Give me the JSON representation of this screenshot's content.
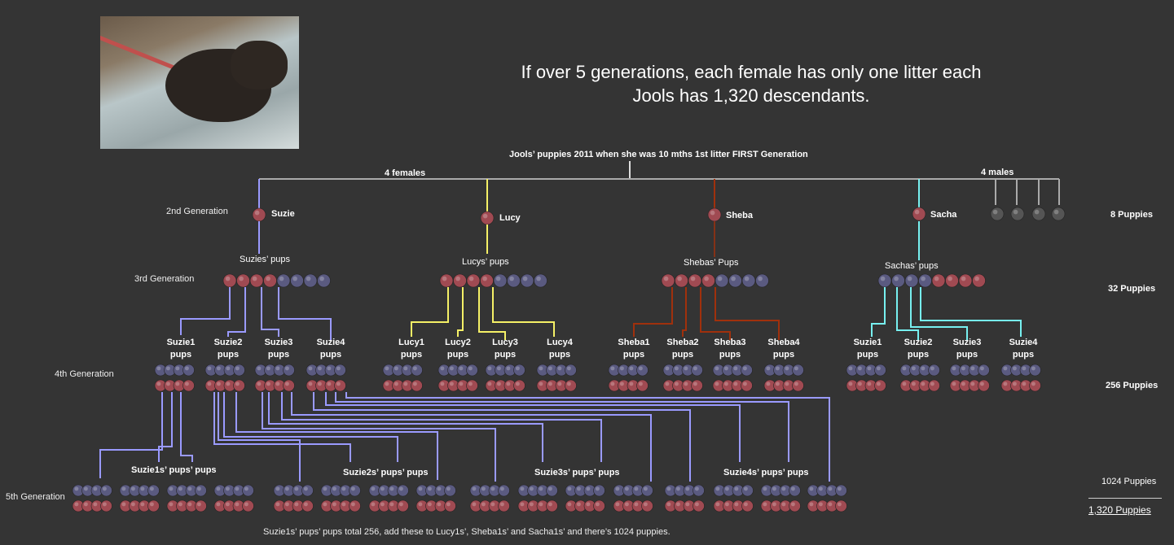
{
  "headline": {
    "line1": "If over 5 generations, each female has only one litter each",
    "line2": "Jools has 1,320  descendants."
  },
  "first_gen_caption": "Jools’  puppies 2011 when she was 10 mths 1st litter FIRST Generation",
  "females_label": "4 females",
  "males_label": "4 males",
  "generations": {
    "g2": "2nd Generation",
    "g3": "3rd Generation",
    "g4": "4th Generation",
    "g5": "5th Generation"
  },
  "counts": {
    "g2": "8 Puppies",
    "g3": "32 Puppies",
    "g4": "256 Puppies",
    "g5": "1024 Puppies",
    "total": "1,320 Puppies"
  },
  "females": [
    {
      "name": "Suzie",
      "pups_label": "Suzies’ pups",
      "color": "#9a9aff"
    },
    {
      "name": "Lucy",
      "pups_label": "Lucys’ pups",
      "color": "#f5f066"
    },
    {
      "name": "Sheba",
      "pups_label": "Shebas’ Pups",
      "color": "#a0300c"
    },
    {
      "name": "Sacha",
      "pups_label": "Sachas’ pups",
      "color": "#77f0f0"
    }
  ],
  "g4_groups": [
    {
      "l1": "Suzie1",
      "l2": "pups"
    },
    {
      "l1": "Suzie2",
      "l2": "pups"
    },
    {
      "l1": "Suzie3",
      "l2": "pups"
    },
    {
      "l1": "Suzie4",
      "l2": "pups"
    },
    {
      "l1": "Lucy1",
      "l2": "pups"
    },
    {
      "l1": "Lucy2",
      "l2": "pups"
    },
    {
      "l1": "Lucy3",
      "l2": "pups"
    },
    {
      "l1": "Lucy4",
      "l2": "pups"
    },
    {
      "l1": "Sheba1",
      "l2": "pups"
    },
    {
      "l1": "Sheba2",
      "l2": "pups"
    },
    {
      "l1": "Sheba3",
      "l2": "pups"
    },
    {
      "l1": "Sheba4",
      "l2": "pups"
    },
    {
      "l1": "Suzie1",
      "l2": "pups"
    },
    {
      "l1": "Suzie2",
      "l2": "pups"
    },
    {
      "l1": "Suzie3",
      "l2": "pups"
    },
    {
      "l1": "Suzie4",
      "l2": "pups"
    }
  ],
  "g5_labels": [
    "Suzie1s’ pups’ pups",
    "Suzie2s’ pups’ pups",
    "Suzie3s’ pups’ pups",
    "Suzie4s’ pups’ pups"
  ],
  "footnote": "Suzie1s’ pups’ pups total 256, add these to Lucy1s’,  Sheba1s’ and Sacha1s’ and there’s 1024 puppies.",
  "colors": {
    "background": "#343434",
    "female_dot": "#a04a52",
    "male_dot": "#5a5a80",
    "male_gray": "#aaaaaa"
  }
}
